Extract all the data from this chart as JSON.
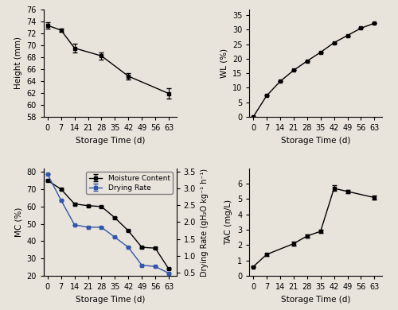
{
  "height": {
    "x": [
      0,
      7,
      14,
      28,
      42,
      63
    ],
    "y": [
      73.3,
      72.5,
      69.5,
      68.2,
      64.8,
      61.9
    ],
    "yerr": [
      0.5,
      0.3,
      0.7,
      0.6,
      0.5,
      0.9
    ],
    "ylabel": "Height (mm)",
    "ylim": [
      58,
      76
    ],
    "yticks": [
      58,
      60,
      62,
      64,
      66,
      68,
      70,
      72,
      74,
      76
    ]
  },
  "wl": {
    "x": [
      0,
      7,
      14,
      21,
      28,
      35,
      42,
      49,
      56,
      63
    ],
    "y": [
      0.0,
      7.3,
      12.2,
      16.0,
      19.2,
      22.2,
      25.5,
      28.0,
      30.5,
      32.2
    ],
    "yerr": [
      0.0,
      0.0,
      0.0,
      0.0,
      0.0,
      0.0,
      0.0,
      0.0,
      0.0,
      0.0
    ],
    "ylabel": "WL (%)",
    "ylim": [
      0,
      37
    ],
    "yticks": [
      0,
      5,
      10,
      15,
      20,
      25,
      30,
      35
    ]
  },
  "mc": {
    "x": [
      0,
      7,
      14,
      21,
      28,
      35,
      42,
      49,
      56,
      63
    ],
    "y": [
      75.0,
      70.0,
      61.5,
      60.5,
      60.0,
      53.5,
      46.0,
      36.5,
      36.0,
      24.0
    ],
    "yerr": [
      0.5,
      0.5,
      0.5,
      0.5,
      0.5,
      0.5,
      0.5,
      0.5,
      0.5,
      0.5
    ],
    "ylabel": "MC (%)",
    "ylim": [
      20,
      82
    ],
    "yticks": [
      20,
      30,
      40,
      50,
      60,
      70,
      80
    ]
  },
  "dr": {
    "x": [
      0,
      7,
      14,
      21,
      28,
      35,
      42,
      49,
      56,
      63
    ],
    "y": [
      3.42,
      2.65,
      1.92,
      1.85,
      1.85,
      1.55,
      1.25,
      0.72,
      0.68,
      0.48
    ],
    "yerr": [
      0.0,
      0.0,
      0.0,
      0.0,
      0.0,
      0.0,
      0.0,
      0.0,
      0.0,
      0.0
    ],
    "ylabel": "Drying Rate (gH₂O kg⁻¹ h⁻¹)",
    "ylim": [
      0.4,
      3.6
    ],
    "yticks": [
      0.5,
      1.0,
      1.5,
      2.0,
      2.5,
      3.0,
      3.5
    ]
  },
  "tac": {
    "x": [
      0,
      7,
      21,
      28,
      35,
      42,
      49,
      63
    ],
    "y": [
      0.6,
      1.4,
      2.1,
      2.6,
      2.9,
      5.7,
      5.5,
      5.1
    ],
    "yerr": [
      0.05,
      0.08,
      0.12,
      0.12,
      0.12,
      0.18,
      0.12,
      0.12
    ],
    "ylabel": "TAC (mg/L)",
    "ylim": [
      0,
      7
    ],
    "yticks": [
      0,
      1,
      2,
      3,
      4,
      5,
      6
    ]
  },
  "xticks_all": [
    0,
    7,
    14,
    21,
    28,
    35,
    42,
    49,
    56,
    63
  ],
  "xlabel": "Storage Time (d)",
  "mc_color": "#000000",
  "dr_color": "#3355aa",
  "marker": "s",
  "markersize": 3.5,
  "fontsize": 7.5,
  "legend_fontsize": 6.5,
  "bg_color": "#e8e4dc"
}
